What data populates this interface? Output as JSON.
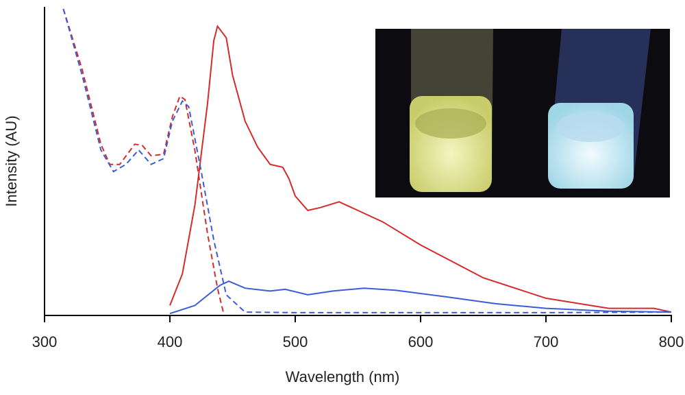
{
  "chart_data": {
    "type": "line",
    "x_label": "Wavelength (nm)",
    "y_label": "Intensity (AU)",
    "xlim": [
      300,
      800
    ],
    "xticks": [
      300,
      400,
      500,
      600,
      700,
      800
    ],
    "ylim": [
      0,
      106
    ],
    "series": [
      {
        "color": "#d62a2a",
        "dashed": false,
        "x": [
          400,
          410,
          420,
          430,
          435,
          438,
          445,
          450,
          460,
          470,
          480,
          490,
          495,
          500,
          510,
          520,
          535,
          550,
          570,
          600,
          650,
          700,
          750,
          786,
          800
        ],
        "values": [
          3,
          14,
          38,
          73,
          95,
          100,
          96,
          83,
          67,
          58,
          52,
          51,
          47,
          41,
          36,
          37,
          39,
          36,
          32,
          24,
          12.6,
          5.5,
          2,
          2,
          0.7
        ]
      },
      {
        "color": "#3b5bd9",
        "dashed": false,
        "x": [
          400,
          420,
          440,
          447,
          460,
          480,
          492,
          510,
          530,
          555,
          580,
          620,
          660,
          700,
          750,
          800
        ],
        "values": [
          0.2,
          3,
          10,
          11.4,
          9,
          8,
          8.6,
          6.7,
          8,
          9,
          8.3,
          6,
          3.6,
          2,
          1,
          0.7
        ]
      },
      {
        "color": "#d62a2a",
        "dashed": true,
        "x": [
          315,
          330,
          345,
          352,
          360,
          372,
          378,
          385,
          395,
          402,
          408,
          412,
          420,
          430,
          438,
          443
        ],
        "values": [
          106,
          85,
          59,
          52,
          52,
          59,
          58.6,
          55,
          55.5,
          68.6,
          75.7,
          74.5,
          56.7,
          28,
          9,
          0
        ]
      },
      {
        "color": "#3b5bd9",
        "dashed": true,
        "x": [
          315,
          330,
          345,
          355,
          365,
          375,
          385,
          395,
          402,
          410,
          415,
          425,
          435,
          445,
          460,
          500,
          600,
          700,
          800
        ],
        "values": [
          106,
          83,
          57,
          49.5,
          52,
          57,
          52,
          54,
          67,
          74,
          72,
          49.5,
          25.7,
          6.7,
          0.7,
          0.5,
          0.5,
          0.5,
          0.7
        ]
      }
    ]
  }
}
